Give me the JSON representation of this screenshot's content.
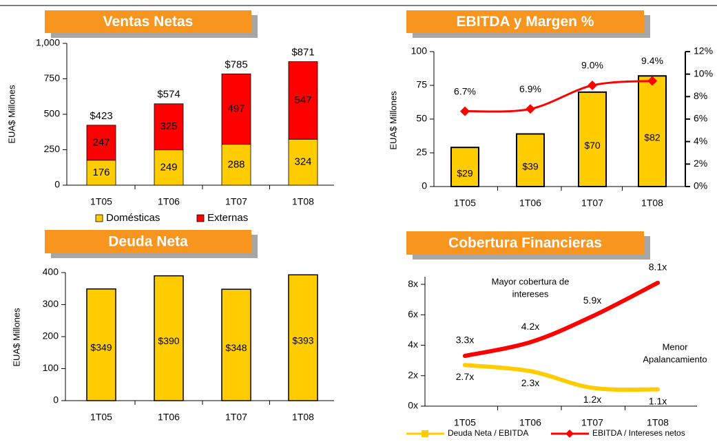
{
  "chart_data": [
    {
      "type": "stacked_bar",
      "title": "Ventas Netas",
      "y_label": "EUA$ Millones",
      "categories": [
        "1T05",
        "1T06",
        "1T07",
        "1T08"
      ],
      "series": [
        {
          "name": "Domésticas",
          "color": "#FFCC00",
          "values": [
            176,
            249,
            288,
            324
          ]
        },
        {
          "name": "Externas",
          "color": "#FF0000",
          "values": [
            247,
            325,
            497,
            547
          ]
        }
      ],
      "totals": [
        423,
        574,
        785,
        871
      ],
      "total_labels": [
        "$423",
        "$574",
        "$785",
        "$871"
      ],
      "ylim": [
        0,
        1000
      ],
      "yticks": [
        0,
        250,
        500,
        750,
        {
          "value": 1000,
          "label": "1,000"
        }
      ],
      "legend": "bottom"
    },
    {
      "type": "combo",
      "title": "EBITDA y Margen %",
      "y_label": "EUA$ Millones",
      "categories": [
        "1T05",
        "1T06",
        "1T07",
        "1T08"
      ],
      "series": [
        {
          "type": "bar",
          "color": "#FFCC00",
          "values": [
            29,
            39,
            70,
            82
          ],
          "value_labels": [
            "$29",
            "$39",
            "$70",
            "$82"
          ]
        },
        {
          "type": "line",
          "axis": "y2",
          "color": "#FF0000",
          "values": [
            6.7,
            6.9,
            9.0,
            9.4
          ],
          "value_labels": [
            "6.7%",
            "6.9%",
            "9.0%",
            "9.4%"
          ]
        }
      ],
      "ylim": [
        0,
        100
      ],
      "yticks": [
        0,
        25,
        50,
        75,
        100
      ],
      "y2lim": [
        0,
        12
      ],
      "y2ticks": [
        {
          "value": 0,
          "label": "0%"
        },
        {
          "value": 2,
          "label": "2%"
        },
        {
          "value": 4,
          "label": "4%"
        },
        {
          "value": 6,
          "label": "6%"
        },
        {
          "value": 8,
          "label": "8%"
        },
        {
          "value": 10,
          "label": "10%"
        },
        {
          "value": 12,
          "label": "12%"
        }
      ]
    },
    {
      "type": "bar",
      "title": "Deuda Neta",
      "y_label": "EUA$ Millones",
      "categories": [
        "1T05",
        "1T06",
        "1T07",
        "1T08"
      ],
      "values": [
        349,
        390,
        348,
        393
      ],
      "value_labels": [
        "$349",
        "$390",
        "$348",
        "$393"
      ],
      "color": "#FFCC00",
      "ylim": [
        0,
        400
      ],
      "yticks": [
        0,
        100,
        200,
        300,
        400
      ]
    },
    {
      "type": "line",
      "title": "Cobertura Financieras",
      "categories": [
        "1T05",
        "1T06",
        "1T07",
        "1T08"
      ],
      "series": [
        {
          "name": "Deuda Neta / EBITDA",
          "color": "#FFCC00",
          "values": [
            2.7,
            2.3,
            1.2,
            1.1
          ],
          "value_labels": [
            "2.7x",
            "2.3x",
            "1.2x",
            "1.1x"
          ]
        },
        {
          "name": "EBITDA / Intereses netos",
          "color": "#FF0000",
          "values": [
            3.3,
            4.2,
            5.9,
            8.1
          ],
          "value_labels": [
            "3.3x",
            "4.2x",
            "5.9x",
            "8.1x"
          ]
        }
      ],
      "ylim": [
        0,
        8.5
      ],
      "yticks": [
        {
          "value": 0,
          "label": "0x"
        },
        {
          "value": 2,
          "label": "2x"
        },
        {
          "value": 4,
          "label": "4x"
        },
        {
          "value": 6,
          "label": "6x"
        },
        {
          "value": 8,
          "label": "8x"
        }
      ],
      "annotations": [
        [
          "Mayor cobertura de",
          "intereses"
        ],
        [
          "Menor",
          "Apalancamiento"
        ]
      ],
      "legend": "bottom"
    }
  ]
}
